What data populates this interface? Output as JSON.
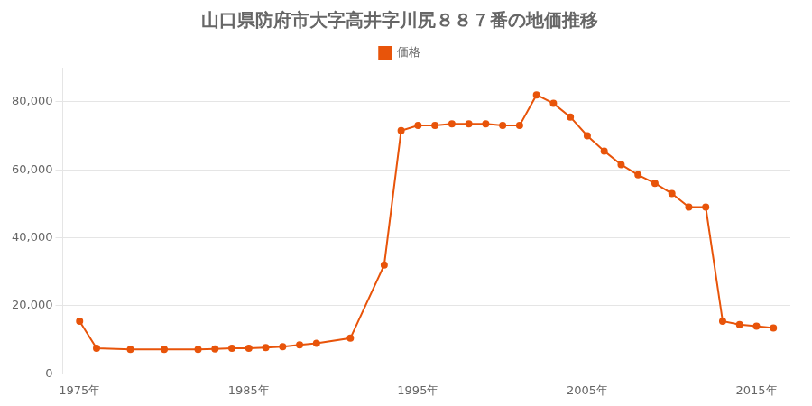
{
  "chart_data": {
    "type": "line",
    "title": "山口県防府市大字高井字川尻８８７番の地価推移",
    "x": [
      1975,
      1976,
      1978,
      1980,
      1982,
      1983,
      1984,
      1985,
      1986,
      1987,
      1988,
      1989,
      1991,
      1993,
      1994,
      1995,
      1996,
      1997,
      1998,
      1999,
      2000,
      2001,
      2002,
      2003,
      2004,
      2005,
      2006,
      2007,
      2008,
      2009,
      2010,
      2011,
      2012,
      2013,
      2014,
      2015,
      2016
    ],
    "series": [
      {
        "name": "価格",
        "color": "#e8540a",
        "marker": "circle",
        "values": [
          15500,
          7500,
          7200,
          7200,
          7200,
          7300,
          7500,
          7500,
          7700,
          8000,
          8500,
          9000,
          10500,
          32000,
          71500,
          73000,
          73000,
          73500,
          73500,
          73500,
          73000,
          73000,
          82000,
          79500,
          75500,
          70000,
          65500,
          61500,
          58500,
          56000,
          53000,
          49000,
          49000,
          15500,
          14500,
          14000,
          13500
        ]
      }
    ],
    "xlim": [
      1974,
      2017
    ],
    "xticks": [
      {
        "value": 1975,
        "label": "1975年"
      },
      {
        "value": 1985,
        "label": "1985年"
      },
      {
        "value": 1995,
        "label": "1995年"
      },
      {
        "value": 2005,
        "label": "2005年"
      },
      {
        "value": 2015,
        "label": "2015年"
      }
    ],
    "ylim": [
      0,
      90000
    ],
    "yticks": [
      0,
      {
        "value": 20000,
        "label": "20,000"
      },
      {
        "value": 40000,
        "label": "40,000"
      },
      {
        "value": 60000,
        "label": "60,000"
      },
      {
        "value": 80000,
        "label": "80,000"
      }
    ],
    "grid": "y",
    "legend": "top"
  }
}
